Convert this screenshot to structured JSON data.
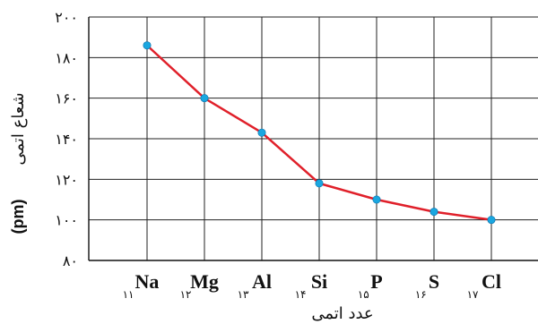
{
  "chart_data": {
    "type": "line",
    "categories": [
      "Na",
      "Mg",
      "Al",
      "Si",
      "P",
      "S",
      "Cl"
    ],
    "atomic_numbers": [
      "۱۱",
      "۱۲",
      "۱۳",
      "۱۴",
      "۱۵",
      "۱۶",
      "۱۷"
    ],
    "series": [
      {
        "values": [
          186,
          160,
          143,
          118,
          110,
          104,
          100
        ]
      }
    ],
    "y_ticks": [
      80,
      100,
      120,
      140,
      160,
      180,
      200
    ],
    "y_tick_labels": [
      "۸۰",
      "۱۰۰",
      "۱۲۰",
      "۱۴۰",
      "۱۶۰",
      "۱۸۰",
      "۲۰۰"
    ],
    "ylim": [
      80,
      200
    ],
    "xlabel": "عدد اتمی",
    "ylabel": "شعاع اتمی",
    "ylabel_unit": "(pm)",
    "grid": true,
    "line_color": "#e0202a",
    "marker_color": "#1aa7e0"
  }
}
